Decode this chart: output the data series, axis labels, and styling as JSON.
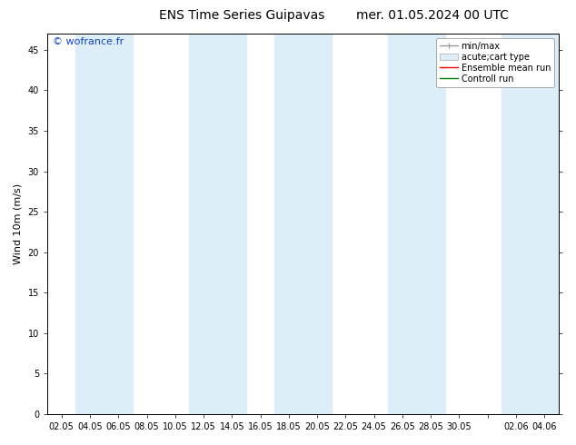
{
  "title_left": "ENS Time Series Guipavas",
  "title_right": "mer. 01.05.2024 00 UTC",
  "ylabel": "Wind 10m (m/s)",
  "watermark": "© wofrance.fr",
  "ylim": [
    0,
    47
  ],
  "yticks": [
    0,
    5,
    10,
    15,
    20,
    25,
    30,
    35,
    40,
    45
  ],
  "xtick_labels": [
    "02.05",
    "04.05",
    "06.05",
    "08.05",
    "10.05",
    "12.05",
    "14.05",
    "16.05",
    "18.05",
    "20.05",
    "22.05",
    "24.05",
    "26.05",
    "28.05",
    "30.05",
    "",
    "02.06",
    "04.06"
  ],
  "band_color": "#ddeef8",
  "background_color": "#ffffff",
  "legend_entries": [
    "min/max",
    "acute;cart type",
    "Ensemble mean run",
    "Controll run"
  ],
  "legend_colors": [
    "#aaaaaa",
    "#cccccc",
    "#ff0000",
    "#008000"
  ],
  "title_fontsize": 10,
  "ylabel_fontsize": 8,
  "tick_fontsize": 7,
  "watermark_fontsize": 8,
  "legend_fontsize": 7,
  "band_positions": [
    1,
    2,
    5,
    6,
    8,
    9,
    12,
    13,
    16,
    17
  ],
  "figwidth": 6.34,
  "figheight": 4.9,
  "dpi": 100
}
